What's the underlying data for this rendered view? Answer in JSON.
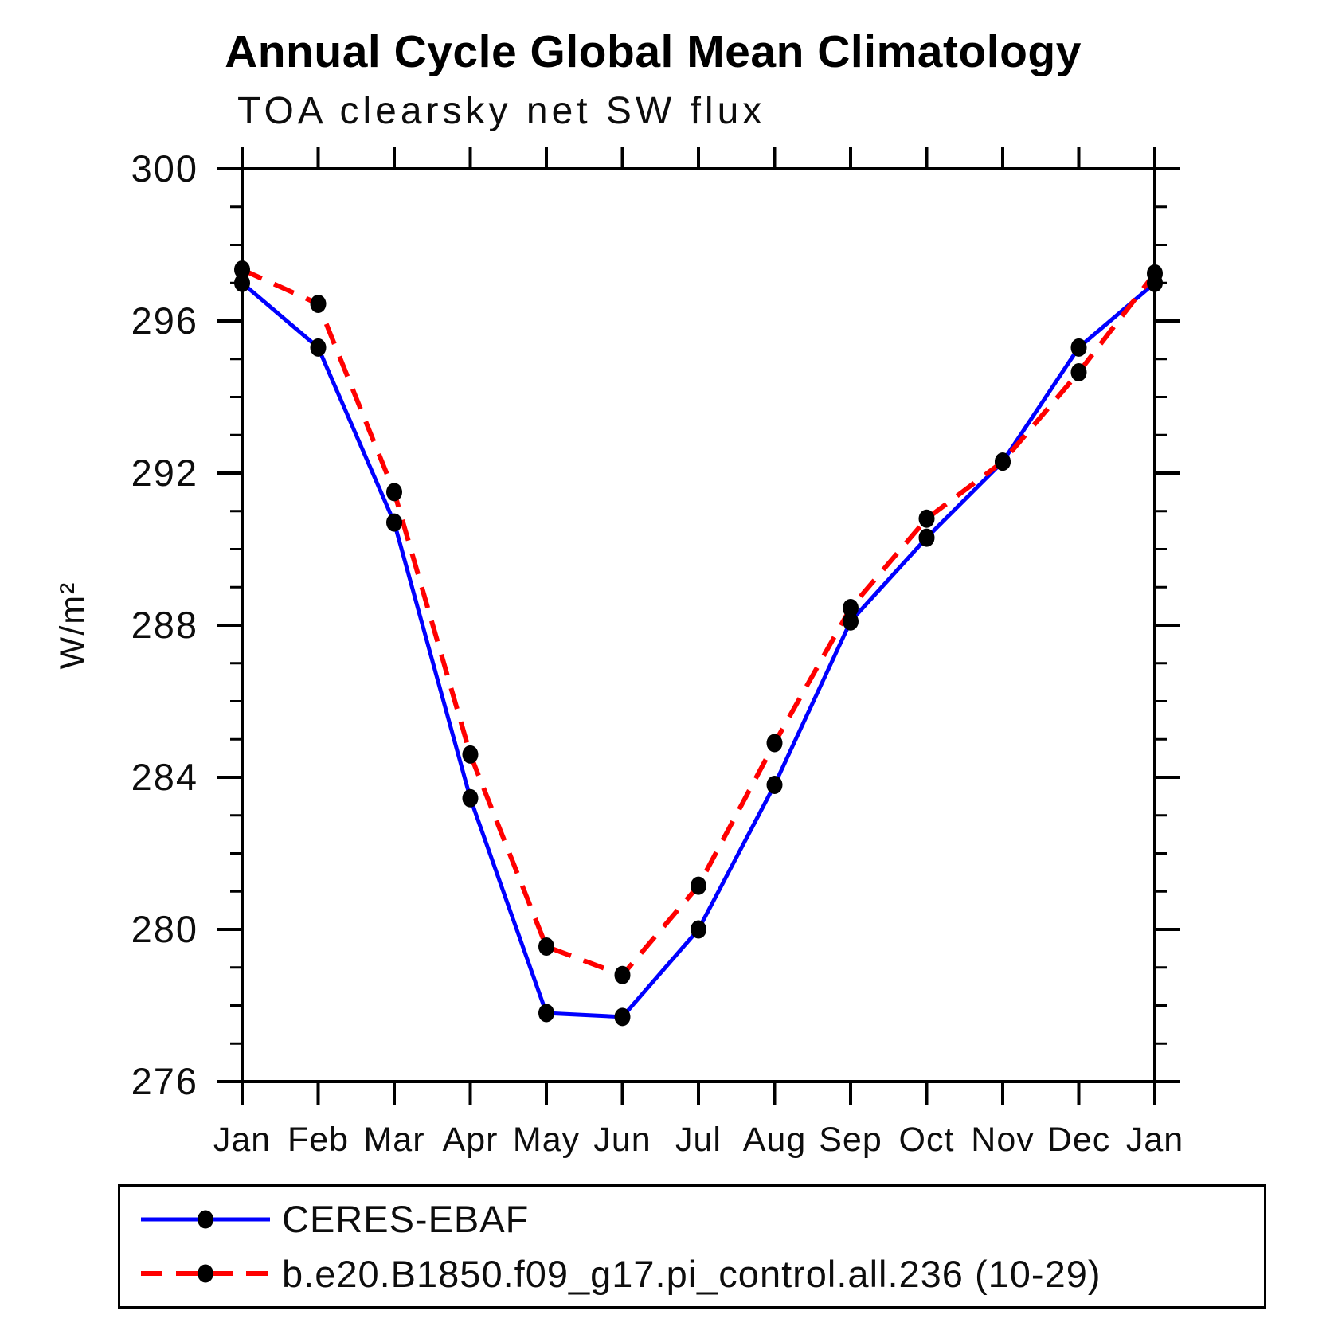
{
  "chart_data": {
    "type": "line",
    "title": "Annual Cycle Global Mean Climatology",
    "subtitle": "TOA clearsky net SW flux",
    "ylabel": "W/m²",
    "x_categories": [
      "Jan",
      "Feb",
      "Mar",
      "Apr",
      "May",
      "Jun",
      "Jul",
      "Aug",
      "Sep",
      "Oct",
      "Nov",
      "Dec",
      "Jan"
    ],
    "ylim": [
      276,
      300
    ],
    "ytick_major_interval": 4,
    "ytick_minor_interval": 1,
    "ytick_labels": [
      "300",
      "296",
      "292",
      "288",
      "284",
      "280",
      "276"
    ],
    "grid": false,
    "legend_position": "bottom-left-box",
    "series": [
      {
        "name": "CERES-EBAF",
        "color": "#0000ff",
        "line_style": "solid",
        "line_width": 5,
        "marker": "dot",
        "marker_color": "#000000",
        "values": [
          297.0,
          295.3,
          290.7,
          283.45,
          277.8,
          277.7,
          280.0,
          283.8,
          288.1,
          290.3,
          292.3,
          295.3,
          297.0
        ]
      },
      {
        "name": "b.e20.B1850.f09_g17.pi_control.all.236 (10-29)",
        "color": "#ff0000",
        "line_style": "dashed",
        "line_width": 6,
        "marker": "dot",
        "marker_color": "#000000",
        "values": [
          297.35,
          296.45,
          291.5,
          284.6,
          279.55,
          278.8,
          281.15,
          284.9,
          288.45,
          290.8,
          292.3,
          294.65,
          297.25
        ]
      }
    ]
  }
}
